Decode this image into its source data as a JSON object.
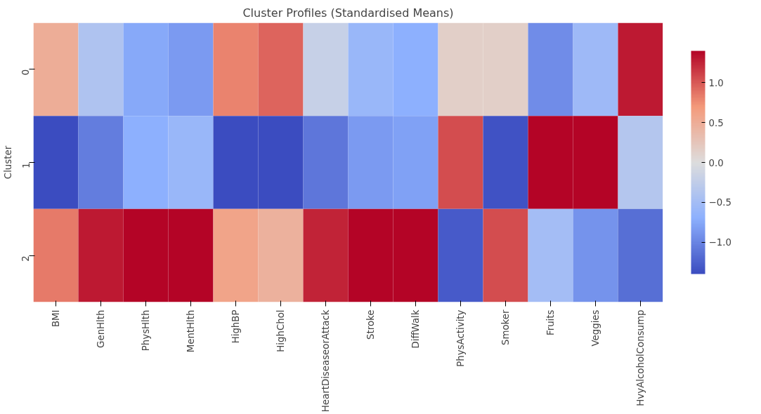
{
  "chart_data": {
    "type": "heatmap",
    "title": "Cluster Profiles (Standardised Means)",
    "ylabel": "Cluster",
    "categories": [
      "BMI",
      "GenHlth",
      "PhysHlth",
      "MentHlth",
      "HighBP",
      "HighChol",
      "HeartDiseaseorAttack",
      "Stroke",
      "DiffWalk",
      "PhysActivity",
      "Smoker",
      "Fruits",
      "Veggies",
      "HvyAlcoholConsump"
    ],
    "y_categories": [
      "0",
      "1",
      "2"
    ],
    "cells": [
      [
        0.5,
        -0.4,
        -0.75,
        -0.85,
        0.8,
        0.95,
        -0.2,
        -0.6,
        -0.7,
        0.15,
        0.15,
        -0.95,
        -0.55,
        1.3
      ],
      [
        -1.4,
        -1.05,
        -0.7,
        -0.6,
        -1.4,
        -1.4,
        -1.1,
        -0.85,
        -0.8,
        1.05,
        -1.35,
        1.4,
        1.4,
        -0.35
      ],
      [
        0.85,
        1.3,
        1.4,
        1.4,
        0.6,
        0.45,
        1.25,
        1.4,
        1.4,
        -1.3,
        1.05,
        -0.5,
        -0.9,
        -1.15
      ]
    ],
    "clim": [
      -1.4,
      1.4
    ],
    "cticks": [
      {
        "value": -1,
        "label": "−1.0"
      },
      {
        "value": -0.5,
        "label": "−0.5"
      },
      {
        "value": 0,
        "label": "0.0"
      },
      {
        "value": 0.5,
        "label": "0.5"
      },
      {
        "value": 1,
        "label": "1.0"
      }
    ]
  }
}
